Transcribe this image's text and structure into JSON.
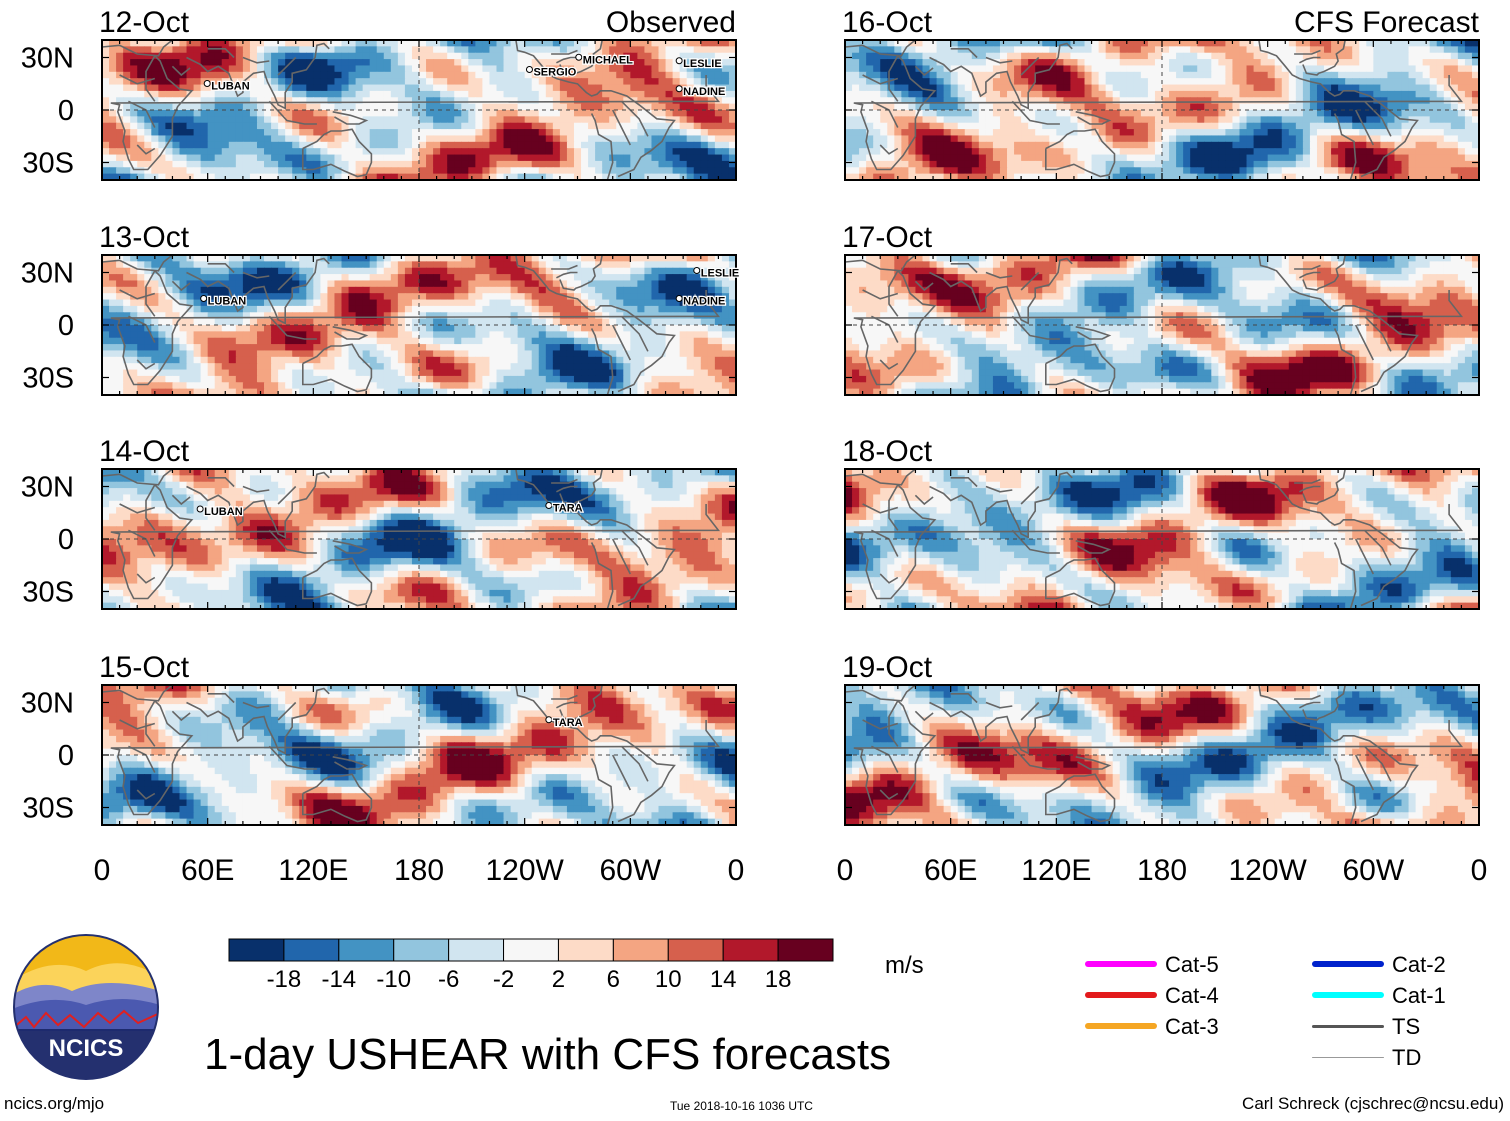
{
  "title": "1-day USHEAR with CFS forecasts",
  "logo_text": "NCICS",
  "footer_left": "ncics.org/mjo",
  "footer_center": "Tue 2018-10-16 1036 UTC",
  "footer_right": "Carl Schreck (cjschrec@ncsu.edu)",
  "colorbar": {
    "units": "m/s",
    "ticks": [
      "-18",
      "-14",
      "-10",
      "-6",
      "-2",
      "2",
      "6",
      "10",
      "14",
      "18"
    ],
    "colors": [
      "#08306b",
      "#2166ac",
      "#4393c3",
      "#92c5de",
      "#d1e5f0",
      "#f7f7f7",
      "#fddbc7",
      "#f4a582",
      "#d6604d",
      "#b2182b",
      "#67001f"
    ]
  },
  "legend": [
    {
      "label": "Cat-5",
      "color": "#ff00ff",
      "style": "thick"
    },
    {
      "label": "Cat-4",
      "color": "#e31a1c",
      "style": "thick"
    },
    {
      "label": "Cat-3",
      "color": "#f5a623",
      "style": "thick"
    },
    {
      "label": "Cat-2",
      "color": "#0022cc",
      "style": "thick"
    },
    {
      "label": "Cat-1",
      "color": "#00ffff",
      "style": "thick"
    },
    {
      "label": "TS",
      "color": "#555555",
      "style": "medium"
    },
    {
      "label": "TD",
      "color": "#999999",
      "style": "thin"
    }
  ],
  "chart_data": {
    "type": "heatmap",
    "variable": "USHEAR",
    "units": "m/s",
    "y_ticks": [
      "30N",
      "0",
      "30S"
    ],
    "x_ticks": [
      "0",
      "60E",
      "120E",
      "180",
      "120W",
      "60W",
      "0"
    ],
    "column_headers": [
      "Observed",
      "CFS Forecast"
    ],
    "panels": [
      {
        "date": "12-Oct",
        "source": "Observed",
        "storms": [
          {
            "name": "MICHAEL",
            "lon": 273,
            "lat": 29
          },
          {
            "name": "SERGIO",
            "lon": 245,
            "lat": 22
          },
          {
            "name": "LESLIE",
            "lon": 330,
            "lat": 27
          },
          {
            "name": "NADINE",
            "lon": 330,
            "lat": 11
          },
          {
            "name": "LUBAN",
            "lon": 62,
            "lat": 14
          }
        ]
      },
      {
        "date": "13-Oct",
        "source": "Observed",
        "storms": [
          {
            "name": "LESLIE",
            "lon": 340,
            "lat": 30
          },
          {
            "name": "NADINE",
            "lon": 330,
            "lat": 14
          },
          {
            "name": "LUBAN",
            "lon": 60,
            "lat": 14
          }
        ]
      },
      {
        "date": "14-Oct",
        "source": "Observed",
        "storms": [
          {
            "name": "LUBAN",
            "lon": 58,
            "lat": 16
          },
          {
            "name": "TARA",
            "lon": 256,
            "lat": 18
          }
        ]
      },
      {
        "date": "15-Oct",
        "source": "Observed",
        "storms": [
          {
            "name": "TARA",
            "lon": 256,
            "lat": 19
          }
        ]
      },
      {
        "date": "16-Oct",
        "source": "CFS Forecast",
        "storms": []
      },
      {
        "date": "17-Oct",
        "source": "CFS Forecast",
        "storms": []
      },
      {
        "date": "18-Oct",
        "source": "CFS Forecast",
        "storms": []
      },
      {
        "date": "19-Oct",
        "source": "CFS Forecast",
        "storms": []
      }
    ]
  }
}
